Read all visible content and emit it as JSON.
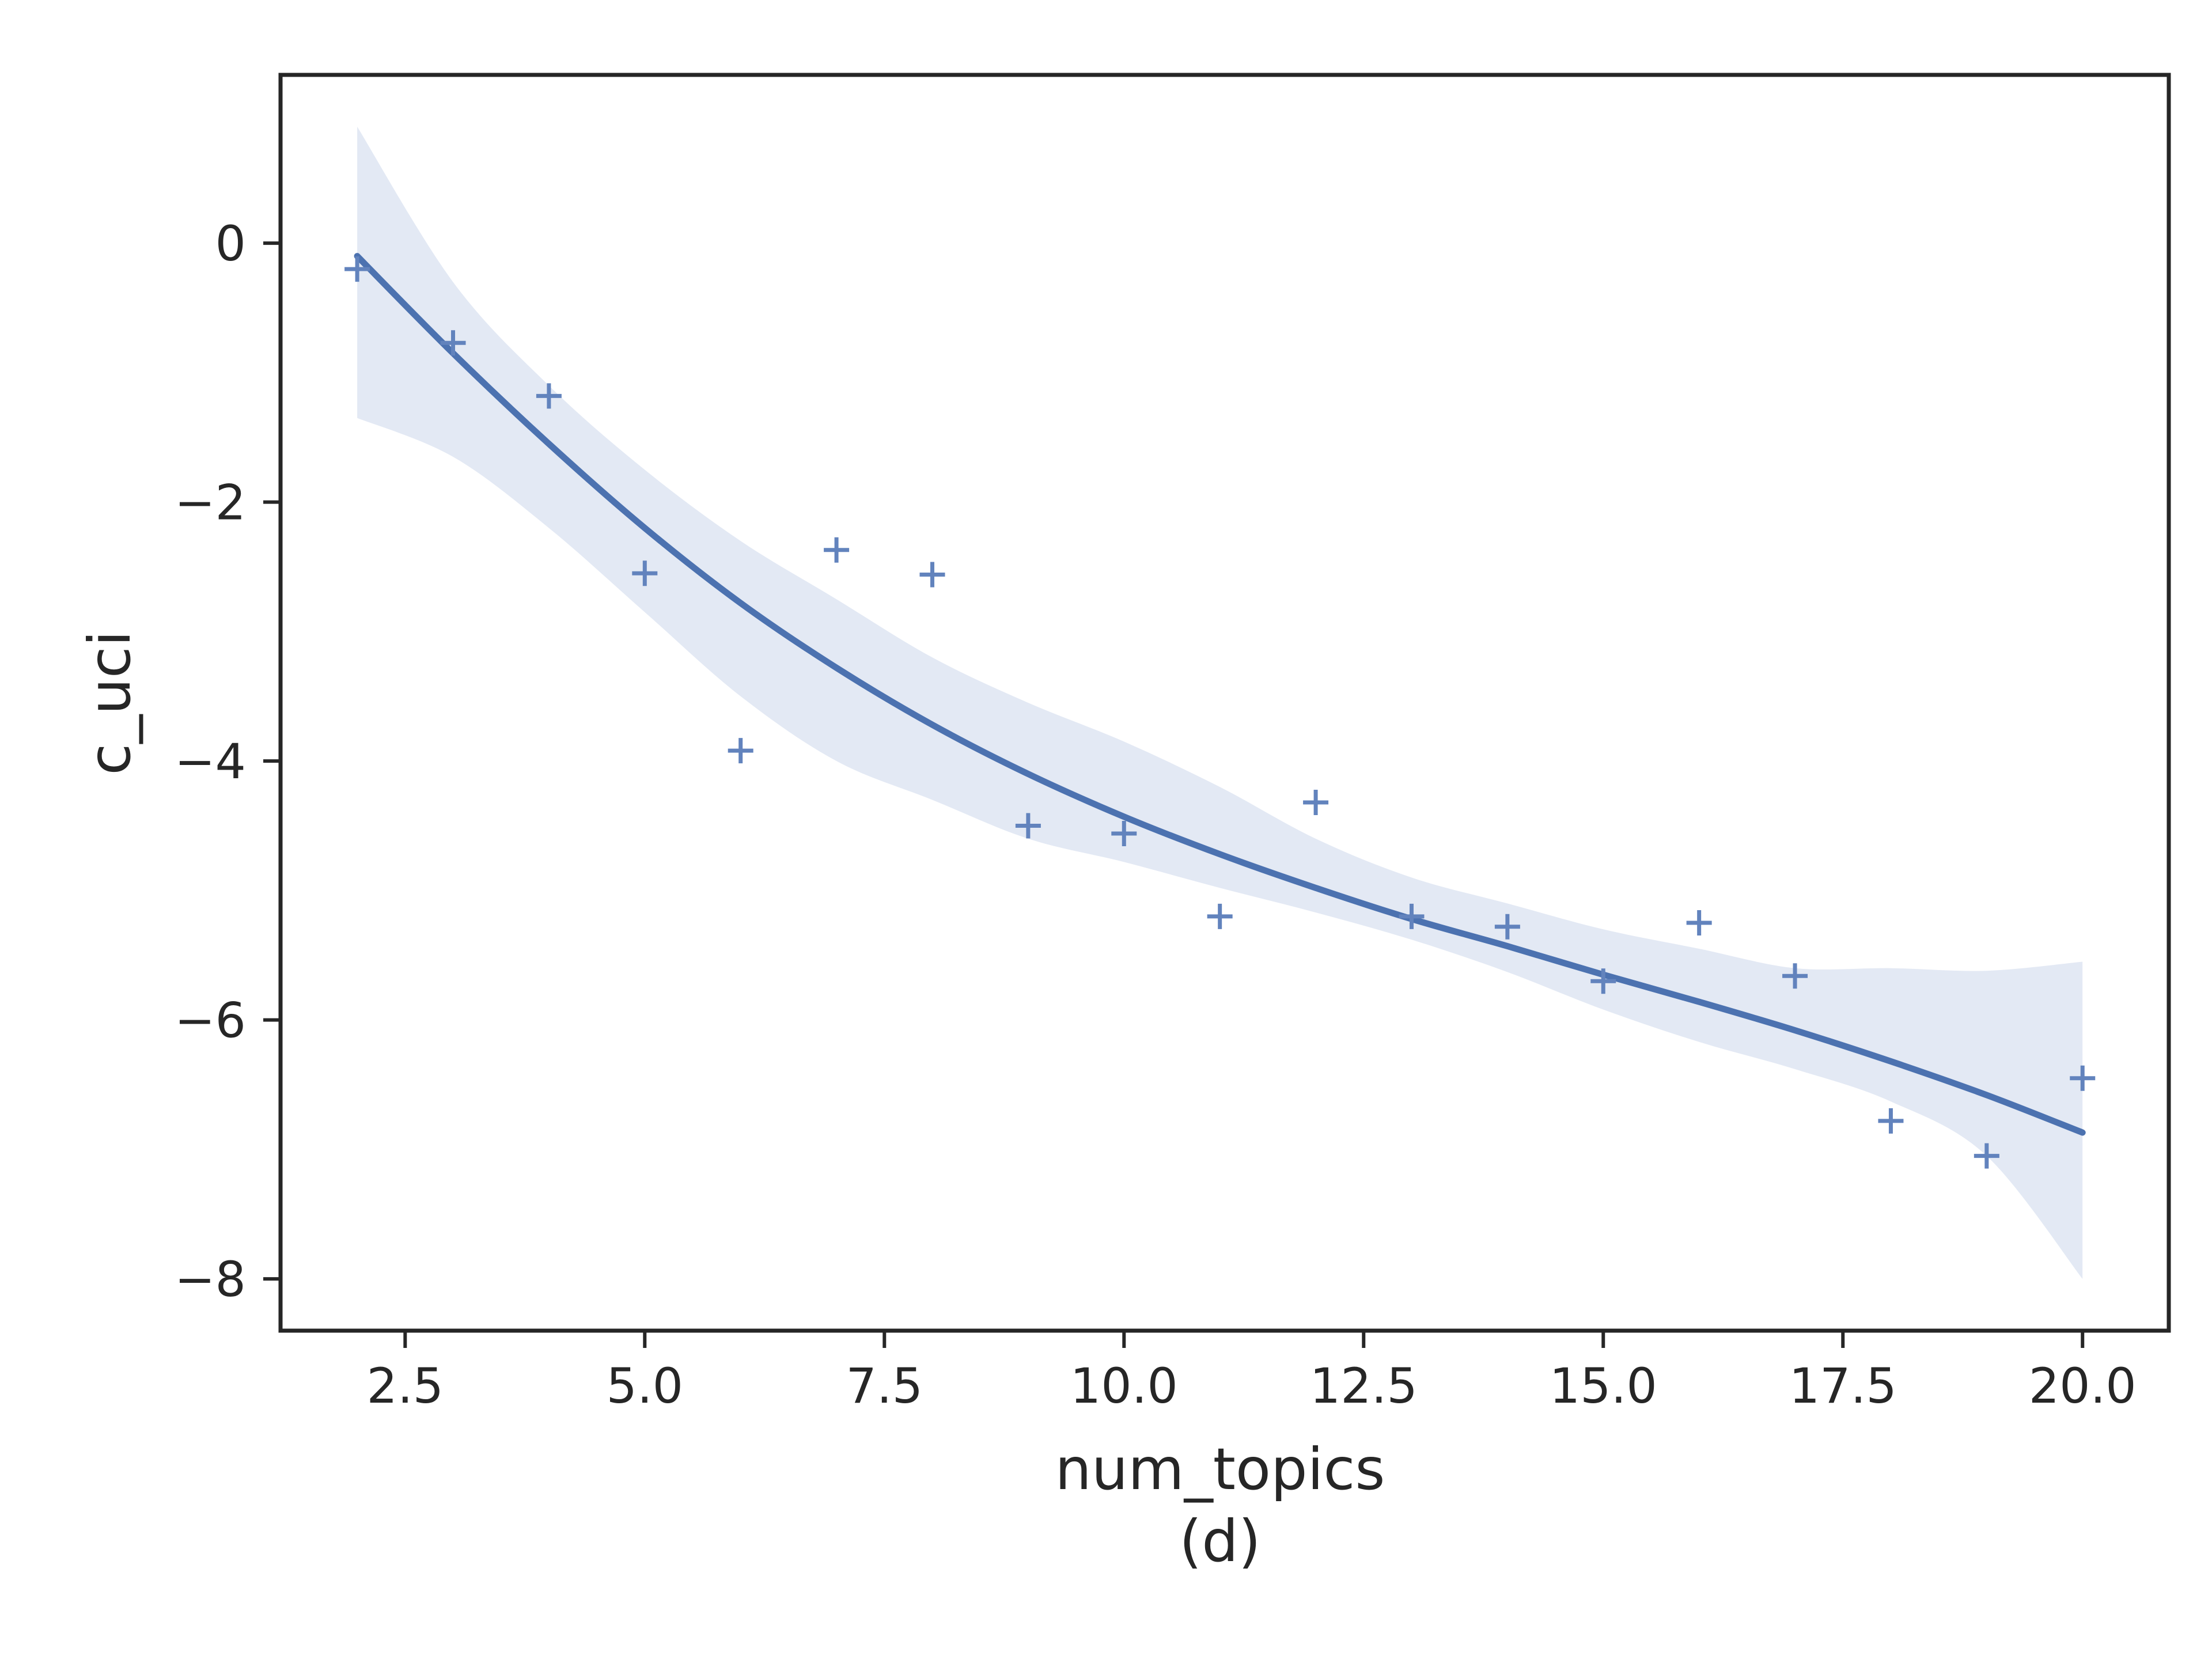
{
  "colors": {
    "line": "#4c72b0",
    "marker": "#6283bd",
    "band": "#e3e9f4",
    "frame": "#262626",
    "text": "#262626",
    "background": "#ffffff"
  },
  "chart_data": {
    "type": "scatter",
    "title": "",
    "xlabel": "num_topics",
    "ylabel": "c_uci",
    "panel_label": "(d)",
    "xlim": [
      1.2,
      20.9
    ],
    "ylim": [
      -8.4,
      1.3
    ],
    "xticks": [
      2.5,
      5.0,
      7.5,
      10.0,
      12.5,
      15.0,
      17.5,
      20.0
    ],
    "xtick_labels": [
      "2.5",
      "5.0",
      "7.5",
      "10.0",
      "12.5",
      "15.0",
      "17.5",
      "20.0"
    ],
    "yticks": [
      0,
      -2,
      -4,
      -6,
      -8
    ],
    "ytick_labels": [
      "0",
      "−2",
      "−4",
      "−6",
      "−8"
    ],
    "grid": false,
    "legend": false,
    "marker": "plus",
    "points": {
      "x": [
        2,
        3,
        4,
        5,
        6,
        7,
        8,
        9,
        10,
        11,
        12,
        13,
        14,
        15,
        16,
        17,
        18,
        19,
        20
      ],
      "y": [
        -0.2,
        -0.77,
        -1.18,
        -2.55,
        -3.92,
        -2.37,
        -2.56,
        -4.5,
        -4.56,
        -5.2,
        -4.32,
        -5.2,
        -5.28,
        -5.7,
        -5.25,
        -5.66,
        -6.78,
        -7.05,
        -6.45
      ]
    },
    "fit": {
      "x": [
        2,
        3,
        4,
        5,
        6,
        7,
        8,
        9,
        10,
        11,
        12,
        13,
        14,
        15,
        16,
        17,
        18,
        19,
        20
      ],
      "y": [
        -0.1,
        -0.85,
        -1.55,
        -2.2,
        -2.78,
        -3.28,
        -3.72,
        -4.1,
        -4.43,
        -4.72,
        -4.98,
        -5.22,
        -5.43,
        -5.65,
        -5.86,
        -6.08,
        -6.32,
        -6.58,
        -6.87
      ]
    },
    "confidence_band": {
      "x": [
        2,
        3,
        4,
        5,
        6,
        7,
        8,
        9,
        10,
        11,
        12,
        13,
        14,
        15,
        16,
        17,
        18,
        19,
        20
      ],
      "upper": [
        0.9,
        -0.3,
        -1.1,
        -1.75,
        -2.3,
        -2.75,
        -3.2,
        -3.55,
        -3.85,
        -4.2,
        -4.6,
        -4.9,
        -5.1,
        -5.3,
        -5.45,
        -5.6,
        -5.6,
        -5.62,
        -5.55
      ],
      "lower": [
        -1.35,
        -1.65,
        -2.2,
        -2.85,
        -3.5,
        -4.0,
        -4.3,
        -4.6,
        -4.78,
        -4.98,
        -5.17,
        -5.38,
        -5.63,
        -5.92,
        -6.17,
        -6.38,
        -6.63,
        -7.05,
        -8.0
      ]
    }
  }
}
